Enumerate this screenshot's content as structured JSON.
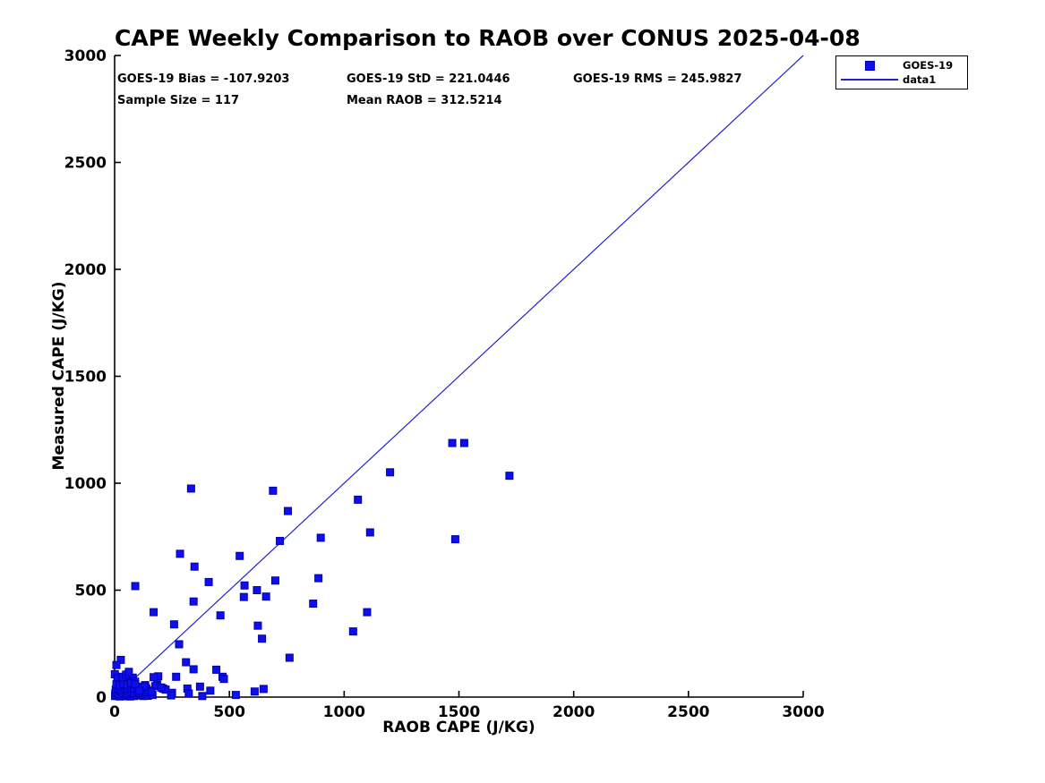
{
  "figure": {
    "title": "CAPE Weekly Comparison to RAOB over CONUS 2025-04-08"
  },
  "stats": {
    "bias": "GOES-19 Bias = -107.9203",
    "std": "GOES-19 StD = 221.0446",
    "rms": "GOES-19 RMS = 245.9827",
    "sample_size": "Sample Size = 117",
    "mean_raob": "Mean RAOB = 312.5214"
  },
  "legend": {
    "items": [
      {
        "label": "GOES-19",
        "type": "marker"
      },
      {
        "label": "data1",
        "type": "line"
      }
    ]
  },
  "chart_data": {
    "type": "scatter",
    "title": "CAPE Weekly Comparison to RAOB over CONUS 2025-04-08",
    "xlabel": "RAOB CAPE (J/KG)",
    "ylabel": "Measured CAPE (J/KG)",
    "xlim": [
      0,
      3000
    ],
    "ylim": [
      0,
      3000
    ],
    "xticks": [
      0,
      500,
      1000,
      1500,
      2000,
      2500,
      3000
    ],
    "yticks": [
      0,
      500,
      1000,
      1500,
      2000,
      2500,
      3000
    ],
    "grid": false,
    "legend_position": "outside-top-right",
    "marker_color": "#0f0fee",
    "marker_edge_color": "#0000b0",
    "line_color": "#2222cc",
    "axis_color": "#000000",
    "identity_line": {
      "name": "data1",
      "x": [
        0,
        3000
      ],
      "y": [
        0,
        3000
      ]
    },
    "series": [
      {
        "name": "GOES-19",
        "marker": "square",
        "points": [
          [
            333,
            975
          ],
          [
            690,
            965
          ],
          [
            755,
            870
          ],
          [
            720,
            730
          ],
          [
            898,
            745
          ],
          [
            285,
            670
          ],
          [
            545,
            660
          ],
          [
            348,
            610
          ],
          [
            90,
            519
          ],
          [
            410,
            538
          ],
          [
            700,
            545
          ],
          [
            888,
            556
          ],
          [
            566,
            522
          ],
          [
            620,
            500
          ],
          [
            660,
            470
          ],
          [
            563,
            468
          ],
          [
            344,
            447
          ],
          [
            865,
            437
          ],
          [
            170,
            397
          ],
          [
            461,
            382
          ],
          [
            259,
            340
          ],
          [
            624,
            334
          ],
          [
            642,
            273
          ],
          [
            281,
            247
          ],
          [
            762,
            184
          ],
          [
            1471,
            1188
          ],
          [
            1523,
            1188
          ],
          [
            1200,
            1051
          ],
          [
            1720,
            1035
          ],
          [
            1060,
            923
          ],
          [
            1113,
            770
          ],
          [
            1484,
            738
          ],
          [
            1100,
            397
          ],
          [
            1039,
            307
          ],
          [
            311,
            163
          ],
          [
            344,
            130
          ],
          [
            443,
            128
          ],
          [
            470,
            95
          ],
          [
            268,
            95
          ],
          [
            190,
            97
          ],
          [
            476,
            85
          ],
          [
            27,
            174
          ],
          [
            8,
            150
          ],
          [
            1,
            107
          ],
          [
            12,
            89
          ],
          [
            79,
            91
          ],
          [
            53,
            77
          ],
          [
            89,
            72
          ],
          [
            170,
            93
          ],
          [
            133,
            56
          ],
          [
            185,
            59
          ],
          [
            211,
            40
          ],
          [
            250,
            20
          ],
          [
            222,
            35
          ],
          [
            246,
            8
          ],
          [
            317,
            40
          ],
          [
            323,
            17
          ],
          [
            372,
            49
          ],
          [
            417,
            30
          ],
          [
            382,
            5
          ],
          [
            528,
            10
          ],
          [
            610,
            26
          ],
          [
            649,
            38
          ],
          [
            177,
            51
          ],
          [
            138,
            41
          ],
          [
            203,
            45
          ],
          [
            2,
            5
          ],
          [
            15,
            8
          ],
          [
            22,
            3
          ],
          [
            30,
            6
          ],
          [
            45,
            9
          ],
          [
            52,
            4
          ],
          [
            60,
            8
          ],
          [
            68,
            3
          ],
          [
            75,
            10
          ],
          [
            85,
            5
          ],
          [
            95,
            8
          ],
          [
            115,
            9
          ],
          [
            125,
            5
          ],
          [
            135,
            12
          ],
          [
            145,
            6
          ],
          [
            165,
            10
          ],
          [
            3,
            18
          ],
          [
            12,
            22
          ],
          [
            20,
            15
          ],
          [
            30,
            25
          ],
          [
            40,
            18
          ],
          [
            50,
            22
          ],
          [
            60,
            16
          ],
          [
            72,
            24
          ],
          [
            85,
            18
          ],
          [
            98,
            25
          ],
          [
            110,
            20
          ],
          [
            122,
            28
          ],
          [
            135,
            22
          ],
          [
            148,
            30
          ],
          [
            160,
            25
          ],
          [
            5,
            35
          ],
          [
            15,
            40
          ],
          [
            28,
            34
          ],
          [
            40,
            45
          ],
          [
            55,
            38
          ],
          [
            70,
            45
          ],
          [
            85,
            40
          ],
          [
            100,
            48
          ],
          [
            115,
            42
          ],
          [
            130,
            50
          ],
          [
            8,
            60
          ],
          [
            22,
            55
          ],
          [
            38,
            62
          ],
          [
            55,
            58
          ],
          [
            72,
            65
          ],
          [
            90,
            60
          ],
          [
            35,
            95
          ],
          [
            50,
            105
          ],
          [
            62,
            118
          ],
          [
            108,
            30
          ]
        ]
      }
    ]
  }
}
